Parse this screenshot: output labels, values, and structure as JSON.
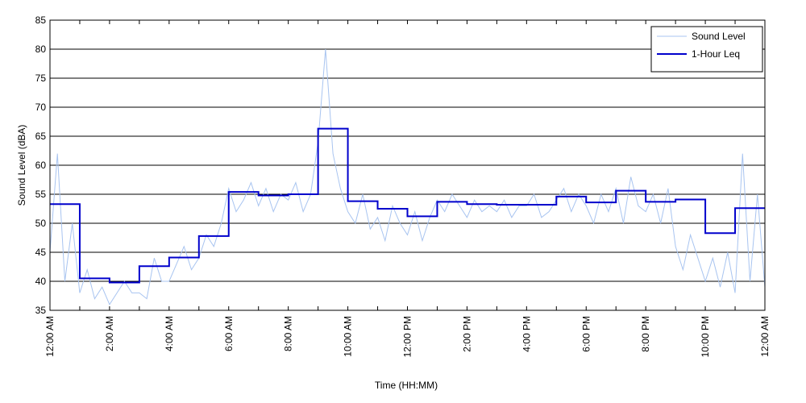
{
  "chart_data": {
    "type": "line",
    "x_label": "Time (HH:MM)",
    "y_label": "Sound Level (dBA)",
    "xlim": [
      0,
      24
    ],
    "ylim": [
      35,
      85
    ],
    "yticks": [
      35,
      40,
      45,
      50,
      55,
      60,
      65,
      70,
      75,
      80,
      85
    ],
    "xticks": [
      {
        "value": 0,
        "label": "12:00 AM"
      },
      {
        "value": 2,
        "label": "2:00 AM"
      },
      {
        "value": 4,
        "label": "4:00 AM"
      },
      {
        "value": 6,
        "label": "6:00 AM"
      },
      {
        "value": 8,
        "label": "8:00 AM"
      },
      {
        "value": 10,
        "label": "10:00 AM"
      },
      {
        "value": 12,
        "label": "12:00 PM"
      },
      {
        "value": 14,
        "label": "2:00 PM"
      },
      {
        "value": 16,
        "label": "4:00 PM"
      },
      {
        "value": 18,
        "label": "6:00 PM"
      },
      {
        "value": 20,
        "label": "8:00 PM"
      },
      {
        "value": 22,
        "label": "10:00 PM"
      },
      {
        "value": 24,
        "label": "12:00 AM"
      }
    ],
    "x_minor_ticks": [
      1,
      3,
      5,
      7,
      9,
      11,
      13,
      15,
      17,
      19,
      21,
      23
    ],
    "grid": true,
    "legend": "upper right",
    "series": [
      {
        "name": "Sound Level",
        "color": "#a8c4f0",
        "style": "line",
        "x": [
          0,
          0.25,
          0.5,
          0.75,
          1,
          1.25,
          1.5,
          1.75,
          2,
          2.25,
          2.5,
          2.75,
          3,
          3.25,
          3.5,
          3.75,
          4,
          4.25,
          4.5,
          4.75,
          5,
          5.25,
          5.5,
          5.75,
          6,
          6.25,
          6.5,
          6.75,
          7,
          7.25,
          7.5,
          7.75,
          8,
          8.25,
          8.5,
          8.75,
          9,
          9.25,
          9.5,
          9.75,
          10,
          10.25,
          10.5,
          10.75,
          11,
          11.25,
          11.5,
          11.75,
          12,
          12.25,
          12.5,
          12.75,
          13,
          13.25,
          13.5,
          13.75,
          14,
          14.25,
          14.5,
          14.75,
          15,
          15.25,
          15.5,
          15.75,
          16,
          16.25,
          16.5,
          16.75,
          17,
          17.25,
          17.5,
          17.75,
          18,
          18.25,
          18.5,
          18.75,
          19,
          19.25,
          19.5,
          19.75,
          20,
          20.25,
          20.5,
          20.75,
          21,
          21.25,
          21.5,
          21.75,
          22,
          22.25,
          22.5,
          22.75,
          23,
          23.25,
          23.5,
          23.75,
          24
        ],
        "values": [
          45,
          62,
          40,
          50,
          38,
          42,
          37,
          39,
          36,
          38,
          40,
          38,
          38,
          37,
          44,
          40,
          40,
          43,
          46,
          42,
          44,
          48,
          46,
          50,
          56,
          52,
          54,
          57,
          53,
          56,
          52,
          55,
          54,
          57,
          52,
          55,
          64,
          80,
          62,
          56,
          52,
          50,
          55,
          49,
          51,
          47,
          53,
          50,
          48,
          52,
          47,
          51,
          54,
          52,
          55,
          53,
          51,
          54,
          52,
          53,
          52,
          54,
          51,
          53,
          53,
          55,
          51,
          52,
          54,
          56,
          52,
          55,
          53,
          50,
          55,
          52,
          56,
          50,
          58,
          53,
          52,
          55,
          50,
          56,
          46,
          42,
          48,
          44,
          40,
          44,
          39,
          45,
          38,
          62,
          40,
          55,
          39
        ]
      },
      {
        "name": "1-Hour Leq",
        "color": "#0000cc",
        "style": "step",
        "x": [
          0,
          1,
          2,
          3,
          4,
          5,
          6,
          7,
          8,
          9,
          10,
          11,
          12,
          13,
          14,
          15,
          16,
          17,
          18,
          19,
          20,
          21,
          22,
          23
        ],
        "values": [
          53.3,
          40.5,
          39.8,
          42.6,
          44.1,
          47.8,
          55.4,
          54.8,
          55.0,
          66.3,
          53.8,
          52.5,
          51.2,
          53.7,
          53.3,
          53.2,
          53.2,
          54.6,
          53.6,
          55.6,
          53.7,
          54.1,
          48.3,
          52.6
        ]
      }
    ]
  }
}
